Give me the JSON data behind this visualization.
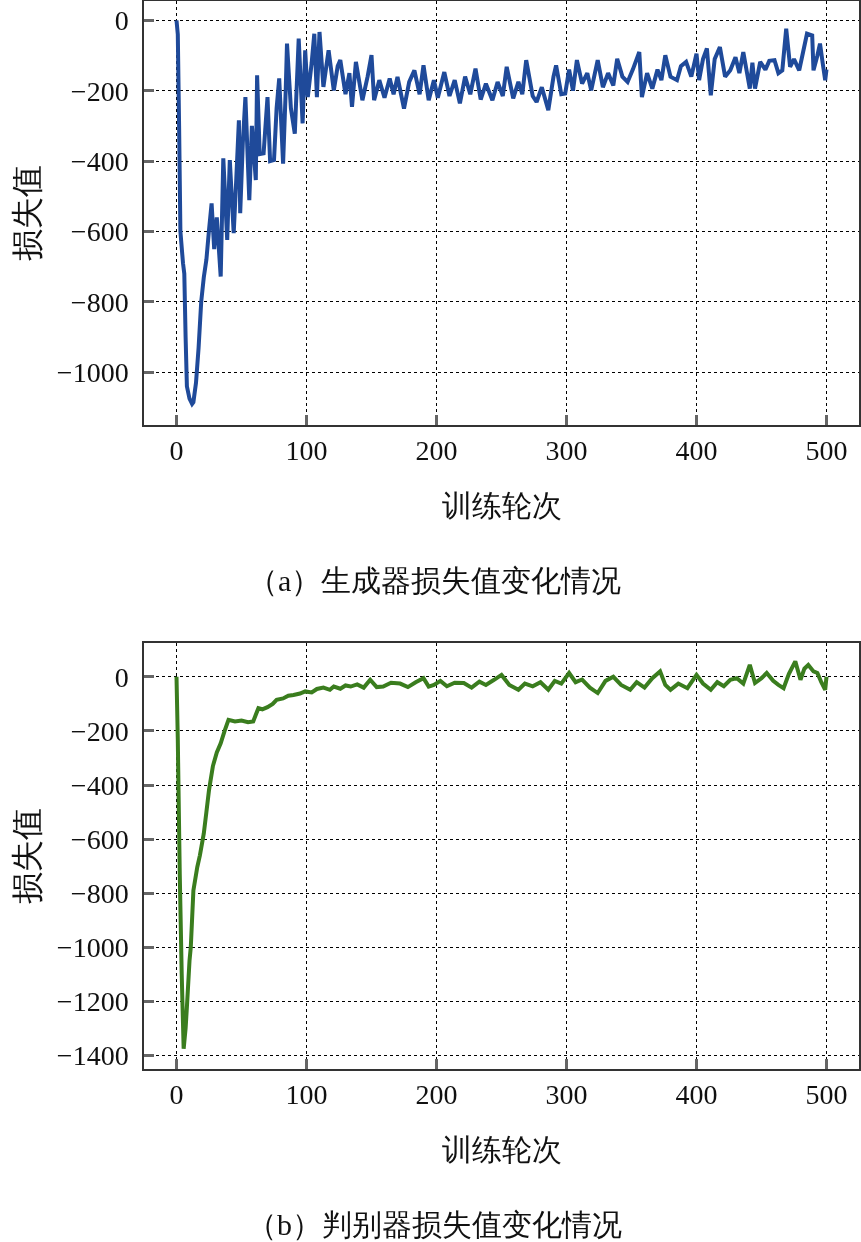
{
  "chart_data": [
    {
      "type": "line",
      "title": "（a）生成器损失值变化情况",
      "xlabel": "训练轮次",
      "ylabel": "损失值",
      "xlim": [
        -25,
        525
      ],
      "ylim": [
        -1150,
        55
      ],
      "xticks": [
        0,
        100,
        200,
        300,
        400,
        500
      ],
      "yticks": [
        0,
        -200,
        -400,
        -600,
        -800,
        -1000
      ],
      "grid": true,
      "series": [
        {
          "color": "#1f4a9a",
          "x": [
            0,
            1,
            2,
            3,
            5,
            6,
            7,
            8,
            10,
            12,
            13,
            15,
            17,
            19,
            21,
            23,
            25,
            27,
            29,
            31,
            34,
            36,
            39,
            41,
            44,
            46,
            48,
            49,
            51,
            53,
            56,
            58,
            61,
            62,
            64,
            67,
            70,
            72,
            75,
            77,
            79,
            82,
            84,
            85,
            88,
            91,
            94,
            97,
            99,
            101,
            104,
            106,
            108,
            110,
            113,
            117,
            121,
            124,
            126,
            130,
            133,
            135,
            138,
            143,
            147,
            150,
            152,
            156,
            160,
            164,
            167,
            170,
            175,
            179,
            183,
            187,
            190,
            194,
            198,
            201,
            206,
            210,
            214,
            218,
            222,
            226,
            230,
            234,
            238,
            243,
            247,
            251,
            254,
            259,
            263,
            266,
            269,
            274,
            277,
            281,
            286,
            290,
            292,
            296,
            299,
            302,
            305,
            308,
            312,
            316,
            319,
            324,
            328,
            332,
            336,
            339,
            343,
            347,
            351,
            356,
            358,
            362,
            366,
            370,
            373,
            376,
            380,
            385,
            388,
            392,
            396,
            400,
            402,
            405,
            408,
            411,
            414,
            418,
            422,
            426,
            430,
            433,
            436,
            441,
            443,
            445,
            449,
            453,
            456,
            460,
            463,
            466,
            469,
            472,
            475,
            479,
            482,
            485,
            489,
            490,
            493,
            495,
            497,
            499,
            500
          ],
          "values": [
            0,
            -40,
            -300,
            -600,
            -690,
            -720,
            -900,
            -1040,
            -1075,
            -1090,
            -1085,
            -1030,
            -930,
            -800,
            -730,
            -680,
            -596,
            -520,
            -650,
            -560,
            -728,
            -392,
            -624,
            -397,
            -605,
            -450,
            -284,
            -548,
            -350,
            -218,
            -511,
            -300,
            -454,
            -156,
            -380,
            -378,
            -218,
            -400,
            -397,
            -250,
            -165,
            -407,
            -200,
            -66,
            -250,
            -322,
            -52,
            -293,
            -85,
            -218,
            -120,
            -38,
            -218,
            -33,
            -189,
            -85,
            -199,
            -130,
            -113,
            -210,
            -150,
            -246,
            -118,
            -227,
            -160,
            -99,
            -227,
            -170,
            -220,
            -165,
            -210,
            -161,
            -251,
            -175,
            -142,
            -210,
            -128,
            -227,
            -170,
            -220,
            -147,
            -215,
            -170,
            -236,
            -160,
            -210,
            -137,
            -225,
            -180,
            -227,
            -175,
            -215,
            -132,
            -222,
            -175,
            -210,
            -113,
            -215,
            -232,
            -190,
            -255,
            -160,
            -128,
            -210,
            -208,
            -140,
            -200,
            -113,
            -180,
            -150,
            -199,
            -113,
            -190,
            -150,
            -185,
            -109,
            -160,
            -175,
            -140,
            -90,
            -218,
            -150,
            -194,
            -140,
            -170,
            -99,
            -160,
            -170,
            -130,
            -118,
            -160,
            -95,
            -170,
            -110,
            -80,
            -213,
            -110,
            -76,
            -160,
            -142,
            -105,
            -150,
            -90,
            -194,
            -120,
            -194,
            -118,
            -140,
            -115,
            -113,
            -150,
            -142,
            -24,
            -132,
            -110,
            -142,
            -90,
            -38,
            -43,
            -142,
            -100,
            -66,
            -120,
            -170,
            -140
          ]
        }
      ]
    },
    {
      "type": "line",
      "title": "（b）判别器损失值变化情况",
      "xlabel": "训练轮次",
      "ylabel": "损失值",
      "xlim": [
        -25,
        525
      ],
      "ylim": [
        -1450,
        125
      ],
      "xticks": [
        0,
        100,
        200,
        300,
        400,
        500
      ],
      "yticks": [
        0,
        -200,
        -400,
        -600,
        -800,
        -1000,
        -1200,
        -1400
      ],
      "grid": true,
      "series": [
        {
          "color": "#3a7d1e",
          "x": [
            0,
            1,
            2.5,
            4,
            5.5,
            7,
            8,
            10,
            11,
            13,
            16,
            18,
            21,
            23,
            25,
            28,
            31,
            34,
            37,
            40,
            45,
            50,
            55,
            59,
            61,
            63,
            66,
            70,
            74,
            77,
            82,
            86,
            90,
            95,
            99,
            104,
            108,
            113,
            118,
            121,
            126,
            130,
            134,
            139,
            144,
            149,
            154,
            159,
            165,
            172,
            178,
            184,
            190,
            194,
            198,
            203,
            208,
            214,
            221,
            227,
            233,
            238,
            244,
            250,
            256,
            263,
            268,
            274,
            280,
            286,
            291,
            296,
            302,
            307,
            312,
            318,
            324,
            330,
            336,
            342,
            349,
            354,
            360,
            366,
            372,
            376,
            380,
            386,
            393,
            400,
            405,
            411,
            416,
            421,
            426,
            431,
            436,
            441,
            445,
            450,
            454,
            459,
            463,
            467,
            471,
            476,
            480,
            483,
            486,
            490,
            493,
            496,
            499,
            500
          ],
          "values": [
            0,
            -233,
            -727,
            -1098,
            -1375,
            -1300,
            -1221,
            -1050,
            -999,
            -790,
            -703,
            -660,
            -579,
            -500,
            -419,
            -330,
            -280,
            -246,
            -200,
            -159,
            -165,
            -162,
            -168,
            -165,
            -140,
            -116,
            -120,
            -112,
            -100,
            -85,
            -80,
            -70,
            -67,
            -62,
            -54,
            -58,
            -45,
            -40,
            -48,
            -36,
            -44,
            -32,
            -36,
            -28,
            -40,
            -11,
            -38,
            -36,
            -22,
            -25,
            -38,
            -20,
            -5,
            -36,
            -30,
            -15,
            -35,
            -22,
            -23,
            -40,
            -18,
            -30,
            -12,
            7,
            -30,
            -48,
            -25,
            -35,
            -20,
            -48,
            -15,
            -25,
            14,
            -20,
            -10,
            -40,
            -60,
            -15,
            0,
            -30,
            -48,
            -20,
            -40,
            -5,
            20,
            -30,
            -48,
            -25,
            -42,
            7,
            -25,
            -48,
            -20,
            -35,
            -11,
            -5,
            -25,
            44,
            -23,
            -5,
            14,
            -15,
            -30,
            -42,
            10,
            57,
            -11,
            30,
            44,
            20,
            14,
            -20,
            -48,
            0
          ]
        }
      ]
    }
  ]
}
